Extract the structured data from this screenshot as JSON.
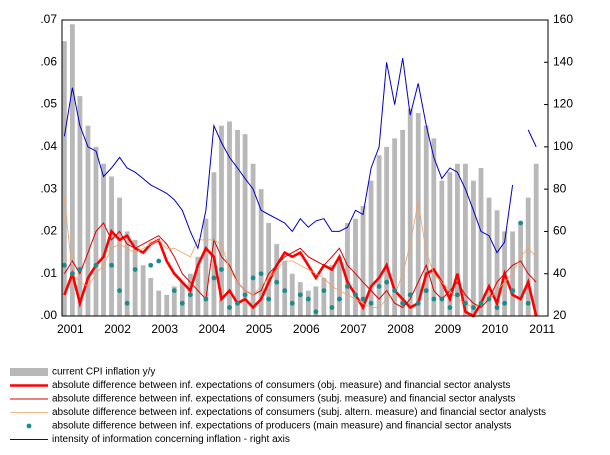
{
  "chart_data": {
    "type": "combo",
    "x": [
      2001,
      2001.17,
      2001.33,
      2001.5,
      2001.67,
      2001.83,
      2002,
      2002.17,
      2002.33,
      2002.5,
      2002.67,
      2002.83,
      2003,
      2003.17,
      2003.33,
      2003.5,
      2003.67,
      2003.83,
      2004,
      2004.17,
      2004.33,
      2004.5,
      2004.67,
      2004.83,
      2005,
      2005.17,
      2005.33,
      2005.5,
      2005.67,
      2005.83,
      2006,
      2006.17,
      2006.33,
      2006.5,
      2006.67,
      2006.83,
      2007,
      2007.17,
      2007.33,
      2007.5,
      2007.67,
      2007.83,
      2008,
      2008.17,
      2008.33,
      2008.5,
      2008.67,
      2008.83,
      2009,
      2009.17,
      2009.33,
      2009.5,
      2009.67,
      2009.83,
      2010,
      2010.17,
      2010.33,
      2010.5,
      2010.67,
      2010.83,
      2011
    ],
    "xlim": [
      2000.95,
      2011.25
    ],
    "xticks": [
      2001,
      2002,
      2003,
      2004,
      2005,
      2006,
      2007,
      2008,
      2009,
      2010,
      2011
    ],
    "ylim": [
      0,
      0.07
    ],
    "yticks": [
      {
        "value": 0,
        "label": ".00"
      },
      {
        "value": 0.01,
        "label": ".01"
      },
      {
        "value": 0.02,
        "label": ".02"
      },
      {
        "value": 0.03,
        "label": ".03"
      },
      {
        "value": 0.04,
        "label": ".04"
      },
      {
        "value": 0.05,
        "label": ".05"
      },
      {
        "value": 0.06,
        "label": ".06"
      },
      {
        "value": 0.07,
        "label": ".07"
      }
    ],
    "y2lim": [
      20,
      160
    ],
    "y2ticks": [
      20,
      40,
      60,
      80,
      100,
      120,
      140,
      160
    ],
    "series": [
      {
        "name": "current CPI inflation y/y",
        "type": "bar",
        "color": "#b8b8b8",
        "values": [
          0.065,
          0.069,
          0.052,
          0.045,
          0.04,
          0.036,
          0.033,
          0.028,
          0.02,
          0.018,
          0.012,
          0.009,
          0.006,
          0.005,
          0.007,
          0.008,
          0.01,
          0.014,
          0.023,
          0.034,
          0.045,
          0.046,
          0.044,
          0.043,
          0.036,
          0.03,
          0.022,
          0.017,
          0.013,
          0.01,
          0.008,
          0.006,
          0.007,
          0.009,
          0.012,
          0.014,
          0.022,
          0.023,
          0.026,
          0.032,
          0.038,
          0.04,
          0.042,
          0.044,
          0.049,
          0.048,
          0.045,
          0.042,
          0.032,
          0.034,
          0.036,
          0.036,
          0.032,
          0.035,
          0.028,
          0.025,
          0.02,
          0.02,
          0.022,
          0.028,
          0.036
        ]
      },
      {
        "name": "absolute difference between inf. expectations of consumers (obj. measure) and financial sector analysts",
        "type": "line",
        "color": "#ff0000",
        "line_width": 2.6,
        "values": [
          0.005,
          0.01,
          0.003,
          0.009,
          0.012,
          0.014,
          0.02,
          0.018,
          0.019,
          0.016,
          0.015,
          0.017,
          0.018,
          0.013,
          0.01,
          0.008,
          0.006,
          0.012,
          0.016,
          0.014,
          0.004,
          0.006,
          0.003,
          0.004,
          0.002,
          0.004,
          0.008,
          0.012,
          0.015,
          0.014,
          0.015,
          0.012,
          0.009,
          0.012,
          0.011,
          0.014,
          0.008,
          0.005,
          0.002,
          0.007,
          0.009,
          0.012,
          0.006,
          0.004,
          0.002,
          0.003,
          0.01,
          0.011,
          0.008,
          0.004,
          0.01,
          0.001,
          0,
          0.003,
          0.007,
          0.003,
          0.01,
          0.005,
          0.004,
          0.008,
          0
        ]
      },
      {
        "name": "absolute difference between inf. expectations of consumers (subj. measure) and financial sector analysts",
        "type": "line",
        "color": "#e00000",
        "line_width": 1,
        "values": [
          0.01,
          0.013,
          0.01,
          0.015,
          0.02,
          0.022,
          0.018,
          0.02,
          0.017,
          0.016,
          0.017,
          0.018,
          0.019,
          0.017,
          0.014,
          0.01,
          0.008,
          0.006,
          0.004,
          0.018,
          0.014,
          0.012,
          0.008,
          0.006,
          0.005,
          0.006,
          0.01,
          0.012,
          0.014,
          0.015,
          0.016,
          0.014,
          0.013,
          0.012,
          0.014,
          0.016,
          0.012,
          0.01,
          0.008,
          0.006,
          0.004,
          0.006,
          0.003,
          0.002,
          0.004,
          0.008,
          0.012,
          0.006,
          0.004,
          0.006,
          0.008,
          0.005,
          0.003,
          0.002,
          0.004,
          0.008,
          0.01,
          0.012,
          0.013,
          0.01,
          0.008
        ]
      },
      {
        "name": "absolute difference between inf. expectations of consumers (subj. altern. measure) and financial sector analysts",
        "type": "line",
        "color": "#f2a060",
        "line_width": 0.8,
        "values": [
          0.028,
          0.01,
          0.008,
          0.007,
          0.01,
          0.012,
          0.016,
          0.017,
          0.016,
          0.015,
          0.016,
          0.017,
          0.018,
          0.016,
          0.016,
          0.015,
          0.014,
          0.018,
          0.018,
          0.018,
          0.017,
          0.011,
          0.008,
          0.006,
          0.005,
          0.007,
          0.009,
          0.011,
          0.013,
          0.013,
          0.012,
          0.011,
          0.01,
          0.009,
          0.007,
          0.006,
          0.005,
          0.004,
          0.003,
          0.002,
          0.002,
          0.004,
          0.005,
          0.01,
          0.017,
          0.027,
          0.015,
          0.01,
          0.008,
          0.006,
          0.004,
          0.003,
          0.002,
          0.003,
          0.004,
          0.006,
          0.008,
          0.01,
          0.014,
          0.016,
          0.014
        ]
      },
      {
        "name": "absolute difference between inf. expectations of producers (main measure) and financial sector analysts",
        "type": "scatter",
        "color": "#1a8c8c",
        "values": [
          0.012,
          0.01,
          0.011,
          null,
          0.012,
          null,
          0.012,
          0.006,
          0.003,
          0.011,
          null,
          0.012,
          0.013,
          null,
          0.006,
          0.003,
          0.005,
          null,
          0.004,
          0.009,
          0.011,
          0.002,
          0.003,
          0.005,
          0.009,
          0.01,
          0.004,
          0.008,
          0.006,
          0.003,
          0.005,
          0.004,
          0.001,
          0.006,
          0.002,
          0.004,
          0.007,
          0.005,
          0.004,
          0.003,
          0.007,
          0.008,
          0.006,
          0.003,
          0.005,
          0.003,
          0.006,
          0.004,
          0.004,
          0.002,
          0.005,
          0.003,
          0.002,
          0.003,
          0.004,
          0.002,
          0.003,
          0.006,
          0.022,
          0.003,
          null
        ]
      },
      {
        "name": "intensity of information concerning inflation - right axis",
        "type": "line",
        "axis": "y2",
        "color": "#0000cc",
        "line_width": 1,
        "values": [
          105,
          128,
          110,
          100,
          98,
          86,
          90,
          95,
          90,
          88,
          85,
          82,
          80,
          78,
          75,
          70,
          60,
          52,
          70,
          110,
          102,
          95,
          90,
          85,
          80,
          70,
          68,
          66,
          64,
          60,
          66,
          62,
          65,
          66,
          60,
          60,
          62,
          70,
          68,
          90,
          100,
          140,
          120,
          142,
          115,
          130,
          110,
          95,
          85,
          90,
          88,
          80,
          70,
          60,
          58,
          50,
          55,
          82,
          null,
          108,
          100
        ]
      }
    ]
  }
}
